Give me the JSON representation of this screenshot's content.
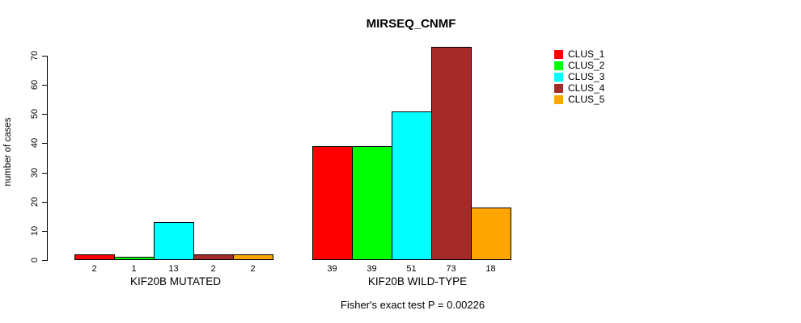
{
  "chart_data": {
    "type": "bar",
    "title": "MIRSEQ_CNMF",
    "ylabel": "number of cases",
    "xlabel": "",
    "ylim": [
      0,
      70
    ],
    "yticks": [
      0,
      10,
      20,
      30,
      40,
      50,
      60,
      70
    ],
    "grid": false,
    "legend_position": "right-outside",
    "categories": [
      "KIF20B MUTATED",
      "KIF20B WILD-TYPE"
    ],
    "groups": [
      {
        "label": "KIF20B MUTATED",
        "values": [
          2,
          1,
          13,
          2,
          2
        ]
      },
      {
        "label": "KIF20B WILD-TYPE",
        "values": [
          39,
          39,
          51,
          73,
          18
        ]
      }
    ],
    "series": [
      {
        "name": "CLUS_1",
        "color": "#FF0000",
        "values": [
          2,
          39
        ]
      },
      {
        "name": "CLUS_2",
        "color": "#00FF00",
        "values": [
          1,
          39
        ]
      },
      {
        "name": "CLUS_3",
        "color": "#00FFFF",
        "values": [
          13,
          51
        ]
      },
      {
        "name": "CLUS_4",
        "color": "#A52A2A",
        "values": [
          2,
          73
        ]
      },
      {
        "name": "CLUS_5",
        "color": "#FFA500",
        "values": [
          2,
          18
        ]
      }
    ],
    "bar_value_labels_shown": true,
    "footnote": "Fisher's exact test P = 0.00226"
  }
}
